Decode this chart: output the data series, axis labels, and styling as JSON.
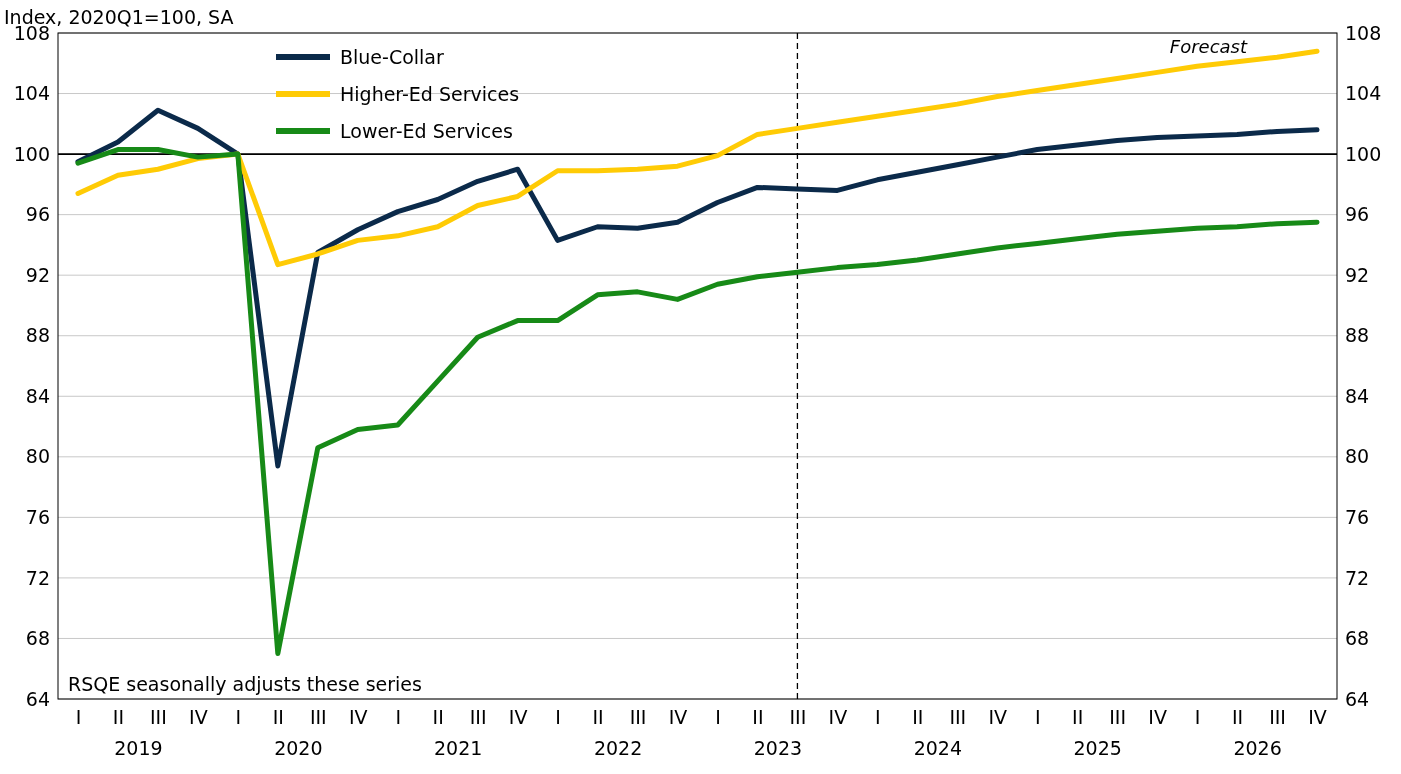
{
  "chart_data": {
    "type": "line",
    "ylabel": "Index, 2020Q1=100, SA",
    "categories": [
      "I",
      "II",
      "III",
      "IV",
      "I",
      "II",
      "III",
      "IV",
      "I",
      "II",
      "III",
      "IV",
      "I",
      "II",
      "III",
      "IV",
      "I",
      "II",
      "III",
      "IV",
      "I",
      "II",
      "III",
      "IV",
      "I",
      "II",
      "III",
      "IV",
      "I",
      "II",
      "III",
      "IV"
    ],
    "series": [
      {
        "name": "Blue-Collar",
        "color": "#0b2a4a",
        "values": [
          99.5,
          100.8,
          102.9,
          101.7,
          100,
          79.4,
          93.5,
          95.0,
          96.2,
          97.0,
          98.2,
          99.0,
          94.3,
          95.2,
          95.1,
          95.5,
          96.8,
          97.8,
          97.7,
          97.6,
          98.3,
          98.8,
          99.3,
          99.8,
          100.3,
          100.6,
          100.9,
          101.1,
          101.2,
          101.3,
          101.5,
          101.6
        ]
      },
      {
        "name": "Higher-Ed Services",
        "color": "#ffcb05",
        "values": [
          97.4,
          98.6,
          99.0,
          99.7,
          100,
          92.7,
          93.4,
          94.3,
          94.6,
          95.2,
          96.6,
          97.2,
          98.9,
          98.9,
          99.0,
          99.2,
          99.9,
          101.3,
          101.7,
          102.1,
          102.5,
          102.9,
          103.3,
          103.8,
          104.2,
          104.6,
          105.0,
          105.4,
          105.8,
          106.1,
          106.4,
          106.8
        ]
      },
      {
        "name": "Lower-Ed Services",
        "color": "#178a17",
        "values": [
          99.4,
          100.3,
          100.3,
          99.8,
          100,
          67.0,
          80.6,
          81.8,
          82.1,
          85.0,
          87.9,
          89.0,
          89.0,
          90.7,
          90.9,
          90.4,
          91.4,
          91.9,
          92.2,
          92.5,
          92.7,
          93.0,
          93.4,
          93.8,
          94.1,
          94.4,
          94.7,
          94.9,
          95.1,
          95.2,
          95.4,
          95.5
        ]
      }
    ],
    "ylim": [
      64,
      108
    ],
    "yticks": [
      64,
      68,
      72,
      76,
      80,
      84,
      88,
      92,
      96,
      100,
      104,
      108
    ],
    "y2lim": [
      64,
      108
    ],
    "y2ticks": [
      64,
      68,
      72,
      76,
      80,
      84,
      88,
      92,
      96,
      100,
      104,
      108
    ],
    "ref_lines": [
      {
        "axis": "y",
        "value": 100,
        "color": "#000000",
        "line_style": "solid"
      },
      {
        "axis": "x2",
        "value": 2023.125,
        "color": "#000000",
        "line_style": "dashed"
      }
    ],
    "annotations": [
      "RSQE seasonally adjusts these series",
      "Forecast"
    ],
    "x2lim": [
      2018.5,
      2026.5
    ],
    "x2ticks": [
      2019,
      2020,
      2021,
      2022,
      2023,
      2024,
      2025,
      2026
    ],
    "grid": "y",
    "legend": "top left",
    "marker": "none",
    "line_style": "solid"
  }
}
